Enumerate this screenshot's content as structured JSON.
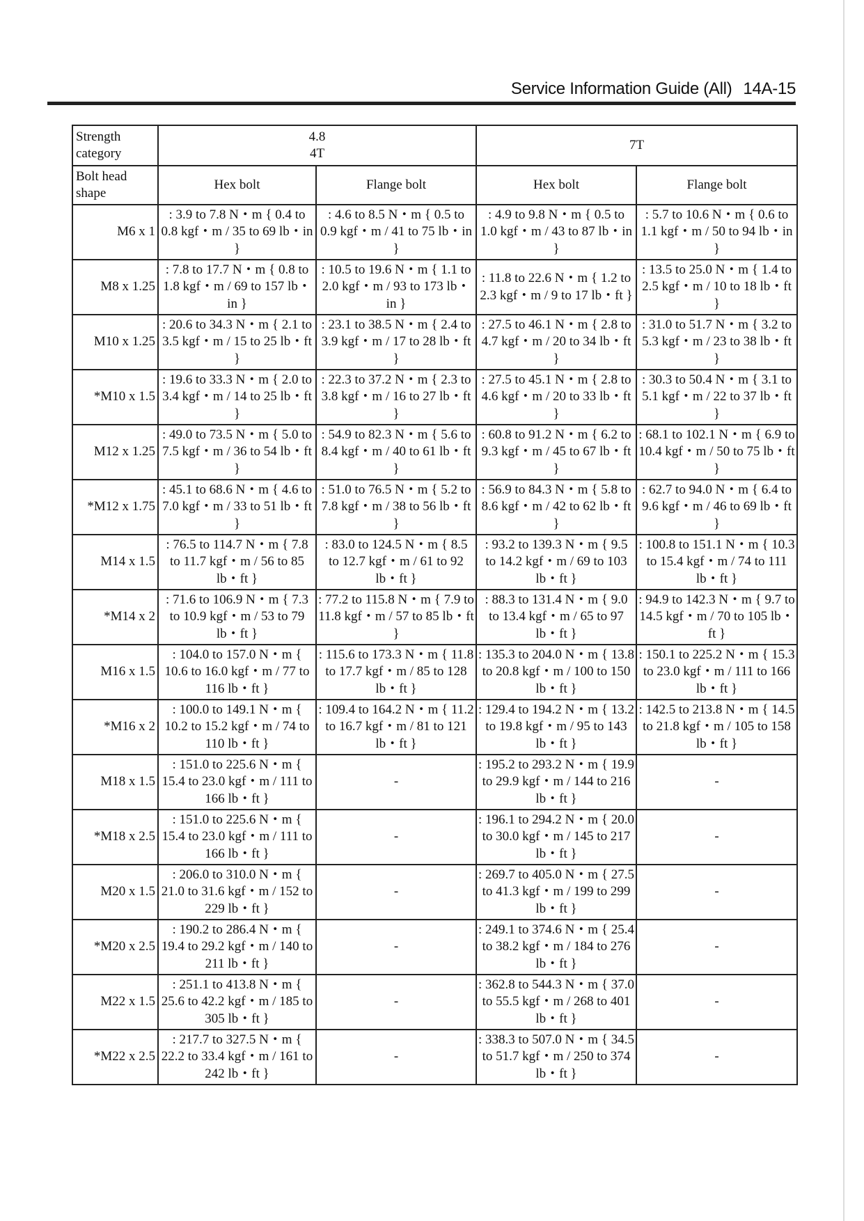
{
  "header": {
    "title": "Service Information Guide (All)",
    "page": "14A-15"
  },
  "table": {
    "strength_label": "Strength category",
    "strength_groups": [
      {
        "line1": "4.8",
        "line2": "4T"
      },
      {
        "line1": "7T",
        "line2": ""
      }
    ],
    "shape_label": "Bolt head shape",
    "shapes": [
      "Hex bolt",
      "Flange bolt",
      "Hex bolt",
      "Flange bolt"
    ],
    "rows": [
      {
        "size": "M6 x 1",
        "cells": [
          ": 3.9 to 7.8 N・m { 0.4 to 0.8 kgf・m / 35 to 69 lb・in }",
          ": 4.6 to 8.5 N・m { 0.5 to 0.9 kgf・m / 41 to 75 lb・in }",
          ": 4.9 to 9.8 N・m { 0.5 to 1.0 kgf・m / 43 to 87 lb・in }",
          ": 5.7 to 10.6 N・m { 0.6 to 1.1 kgf・m / 50 to 94 lb・in }"
        ]
      },
      {
        "size": "M8 x 1.25",
        "cells": [
          ": 7.8 to 17.7 N・m { 0.8 to 1.8 kgf・m / 69 to 157 lb・in }",
          ": 10.5 to 19.6 N・m { 1.1 to 2.0 kgf・m / 93 to 173 lb・in }",
          ": 11.8 to 22.6 N・m { 1.2 to 2.3 kgf・m / 9 to 17 lb・ft }",
          ": 13.5 to 25.0 N・m { 1.4 to 2.5 kgf・m / 10 to 18 lb・ft }"
        ]
      },
      {
        "size": "M10 x 1.25",
        "cells": [
          ": 20.6 to 34.3 N・m { 2.1 to 3.5 kgf・m / 15 to 25 lb・ft }",
          ": 23.1 to 38.5 N・m { 2.4 to 3.9 kgf・m / 17 to 28 lb・ft }",
          ": 27.5 to 46.1 N・m { 2.8 to 4.7 kgf・m / 20 to 34 lb・ft }",
          ": 31.0 to 51.7 N・m { 3.2 to 5.3 kgf・m / 23 to 38 lb・ft }"
        ]
      },
      {
        "size": "*M10 x 1.5",
        "cells": [
          ": 19.6 to 33.3 N・m { 2.0 to 3.4 kgf・m / 14 to 25 lb・ft }",
          ": 22.3 to 37.2 N・m { 2.3 to 3.8 kgf・m / 16 to 27 lb・ft }",
          ": 27.5 to 45.1 N・m { 2.8 to 4.6 kgf・m / 20 to 33 lb・ft }",
          ": 30.3 to 50.4 N・m { 3.1 to 5.1 kgf・m / 22 to 37 lb・ft }"
        ]
      },
      {
        "size": "M12 x 1.25",
        "cells": [
          ": 49.0 to 73.5 N・m { 5.0 to 7.5 kgf・m / 36 to 54 lb・ft }",
          ": 54.9 to 82.3 N・m { 5.6 to 8.4 kgf・m / 40 to 61 lb・ft }",
          ": 60.8 to 91.2 N・m { 6.2 to 9.3 kgf・m / 45 to 67 lb・ft }",
          ": 68.1 to 102.1 N・m { 6.9 to 10.4 kgf・m / 50 to 75 lb・ft }"
        ]
      },
      {
        "size": "*M12 x 1.75",
        "cells": [
          ": 45.1 to 68.6 N・m { 4.6 to 7.0 kgf・m / 33 to 51 lb・ft }",
          ": 51.0 to 76.5 N・m { 5.2 to 7.8 kgf・m / 38 to 56 lb・ft }",
          ": 56.9 to 84.3 N・m { 5.8 to 8.6 kgf・m / 42 to 62 lb・ft }",
          ": 62.7 to 94.0 N・m { 6.4 to 9.6 kgf・m / 46 to 69 lb・ft }"
        ]
      },
      {
        "size": "M14 x 1.5",
        "cells": [
          ": 76.5 to 114.7 N・m { 7.8 to 11.7 kgf・m / 56 to 85 lb・ft }",
          ": 83.0 to 124.5 N・m { 8.5 to 12.7 kgf・m / 61 to 92 lb・ft }",
          ": 93.2 to 139.3 N・m { 9.5 to 14.2 kgf・m / 69 to 103 lb・ft }",
          ": 100.8 to 151.1 N・m { 10.3 to 15.4 kgf・m / 74 to 111 lb・ft }"
        ]
      },
      {
        "size": "*M14 x 2",
        "cells": [
          ": 71.6 to 106.9 N・m { 7.3 to 10.9 kgf・m / 53 to 79 lb・ft }",
          ": 77.2 to 115.8 N・m { 7.9 to 11.8 kgf・m / 57 to 85 lb・ft }",
          ": 88.3 to 131.4 N・m { 9.0 to 13.4 kgf・m / 65 to 97 lb・ft }",
          ": 94.9 to 142.3 N・m { 9.7 to 14.5 kgf・m / 70 to 105 lb・ft }"
        ]
      },
      {
        "size": "M16 x 1.5",
        "cells": [
          ": 104.0 to 157.0 N・m { 10.6 to 16.0 kgf・m / 77 to 116 lb・ft }",
          ": 115.6 to 173.3 N・m { 11.8 to 17.7 kgf・m / 85 to 128 lb・ft }",
          ": 135.3 to 204.0 N・m { 13.8 to 20.8 kgf・m / 100 to 150 lb・ft }",
          ": 150.1 to 225.2 N・m { 15.3 to 23.0 kgf・m / 111 to 166 lb・ft }"
        ]
      },
      {
        "size": "*M16 x 2",
        "cells": [
          ": 100.0 to 149.1 N・m { 10.2 to 15.2 kgf・m / 74 to 110 lb・ft }",
          ": 109.4 to 164.2 N・m { 11.2 to 16.7 kgf・m / 81 to 121 lb・ft }",
          ": 129.4 to 194.2 N・m { 13.2 to 19.8 kgf・m / 95 to 143 lb・ft }",
          ": 142.5 to 213.8 N・m { 14.5 to 21.8 kgf・m / 105 to 158 lb・ft }"
        ]
      },
      {
        "size": "M18 x 1.5",
        "cells": [
          ": 151.0 to 225.6 N・m { 15.4 to 23.0 kgf・m / 111 to 166 lb・ft }",
          "-",
          ": 195.2 to 293.2 N・m { 19.9 to 29.9 kgf・m / 144 to 216 lb・ft }",
          "-"
        ]
      },
      {
        "size": "*M18 x 2.5",
        "cells": [
          ": 151.0 to 225.6 N・m { 15.4 to 23.0 kgf・m / 111 to 166 lb・ft }",
          "-",
          ": 196.1 to 294.2 N・m { 20.0 to 30.0 kgf・m / 145 to 217 lb・ft }",
          "-"
        ]
      },
      {
        "size": "M20 x 1.5",
        "cells": [
          ": 206.0 to 310.0 N・m { 21.0 to 31.6 kgf・m / 152 to 229 lb・ft }",
          "-",
          ": 269.7 to 405.0 N・m { 27.5 to 41.3 kgf・m / 199 to 299 lb・ft }",
          "-"
        ]
      },
      {
        "size": "*M20 x 2.5",
        "cells": [
          ": 190.2 to 286.4 N・m { 19.4 to 29.2 kgf・m / 140 to 211 lb・ft }",
          "-",
          ": 249.1 to 374.6 N・m { 25.4 to 38.2 kgf・m / 184 to 276 lb・ft }",
          "-"
        ]
      },
      {
        "size": "M22 x 1.5",
        "cells": [
          ": 251.1 to 413.8 N・m { 25.6 to 42.2 kgf・m / 185 to 305 lb・ft }",
          "-",
          ": 362.8 to 544.3 N・m { 37.0 to 55.5 kgf・m / 268 to 401 lb・ft }",
          "-"
        ]
      },
      {
        "size": "*M22 x 2.5",
        "cells": [
          ": 217.7 to 327.5 N・m { 22.2 to 33.4 kgf・m / 161 to 242 lb・ft }",
          "-",
          ": 338.3 to 507.0 N・m { 34.5 to 51.7 kgf・m / 250 to 374 lb・ft }",
          "-"
        ]
      }
    ]
  }
}
